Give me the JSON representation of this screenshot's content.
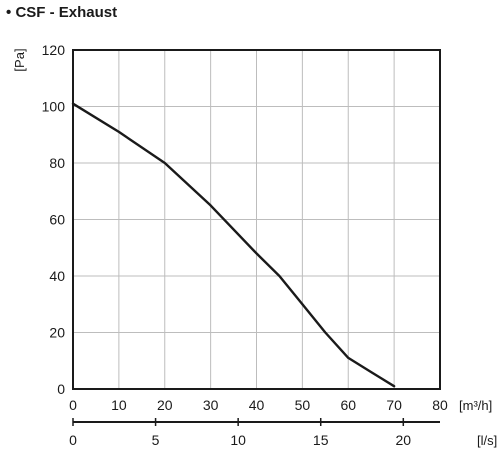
{
  "chart_data": {
    "type": "line",
    "title": "CSF - Exhaust",
    "title_bullet": "•",
    "ylabel": "[Pa]",
    "xlabel": "[m³/h]",
    "xlabel_secondary": "[l/s]",
    "xlim": [
      0,
      80
    ],
    "ylim": [
      0,
      120
    ],
    "x_ticks": [
      0,
      10,
      20,
      30,
      40,
      50,
      60,
      70,
      80
    ],
    "y_ticks": [
      0,
      20,
      40,
      60,
      80,
      100,
      120
    ],
    "secondary_x_ticks": [
      0,
      5,
      10,
      15,
      20
    ],
    "secondary_x_factor": 3.6,
    "grid": true,
    "series": [
      {
        "x": [
          0,
          10,
          20,
          30,
          40,
          45,
          50,
          55,
          60,
          65,
          70
        ],
        "y": [
          101,
          91,
          80,
          65,
          48,
          40,
          30,
          20,
          11,
          6,
          1
        ]
      }
    ],
    "colors": {
      "line": "#1a1a1a",
      "grid": "#bdbdbd",
      "frame": "#1a1a1a"
    }
  }
}
